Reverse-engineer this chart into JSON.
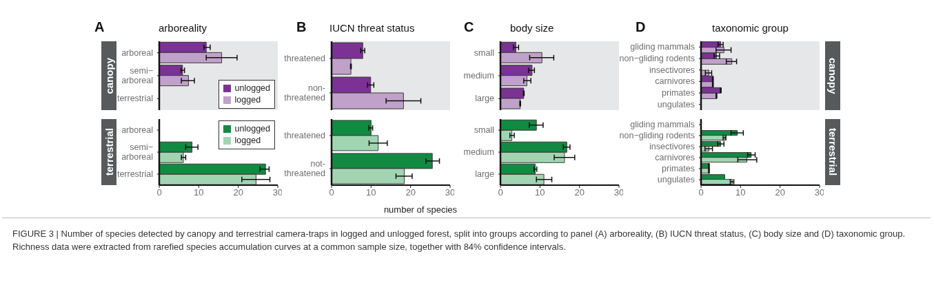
{
  "chart_data": [
    {
      "type": "bar",
      "orientation": "horizontal",
      "title": "arboreality",
      "annotations": [
        "A",
        "canopy"
      ],
      "categories": [
        "arboreal",
        "semi−\narboreal",
        "terrestrial"
      ],
      "xlim": [
        0,
        30
      ],
      "xticks": [
        0,
        10,
        20,
        30
      ],
      "tick_labels": "y",
      "legend": "bottom right",
      "series": [
        {
          "name": "unlogged",
          "color": "#7b3294",
          "values": [
            11.9,
            5.9,
            null
          ],
          "errors": [
            [
              11.3,
              12.9
            ],
            [
              5.5,
              6.4
            ],
            null
          ]
        },
        {
          "name": "logged",
          "color": "#c0a1c9",
          "values": [
            15.8,
            7.4,
            null
          ],
          "errors": [
            [
              11.9,
              19.7
            ],
            [
              5.6,
              8.9
            ],
            null
          ]
        }
      ]
    },
    {
      "type": "bar",
      "orientation": "horizontal",
      "title": "IUCN threat status",
      "annotations": [
        "B"
      ],
      "categories": [
        "threatened",
        "non-\nthreatened"
      ],
      "xlim": [
        0,
        30
      ],
      "xticks": [
        0,
        10,
        20,
        30
      ],
      "tick_labels": "y",
      "series": [
        {
          "color": "#7b3294",
          "values": [
            7.9,
            9.9
          ],
          "errors": [
            [
              7.4,
              8.4
            ],
            [
              9.1,
              10.7
            ]
          ]
        },
        {
          "color": "#c0a1c9",
          "values": [
            4.9,
            18.2
          ],
          "errors": [
            [
              4.8,
              5.0
            ],
            [
              13.8,
              22.6
            ]
          ]
        }
      ]
    },
    {
      "type": "bar",
      "orientation": "horizontal",
      "title": "body size",
      "annotations": [
        "C"
      ],
      "categories": [
        "small",
        "medium",
        "large"
      ],
      "xlim": [
        0,
        30
      ],
      "xticks": [
        0,
        10,
        20,
        30
      ],
      "tick_labels": "y",
      "series": [
        {
          "color": "#7b3294",
          "values": [
            3.9,
            8.0,
            5.9
          ],
          "errors": [
            [
              3.3,
              4.6
            ],
            [
              7.1,
              8.6
            ],
            [
              5.8,
              6.0
            ]
          ]
        },
        {
          "color": "#c0a1c9",
          "values": [
            10.5,
            6.7,
            5.0
          ],
          "errors": [
            [
              7.4,
              13.5
            ],
            [
              5.9,
              7.7
            ],
            [
              4.9,
              5.1
            ]
          ]
        }
      ]
    },
    {
      "type": "bar",
      "orientation": "horizontal",
      "title": "taxonomic group",
      "annotations": [
        "D",
        "canopy"
      ],
      "categories": [
        "gliding mammals",
        "non−gliding rodents",
        "insectivores",
        "carnivores",
        "primates",
        "ungulates"
      ],
      "xlim": [
        0,
        30
      ],
      "xticks": [
        0,
        10,
        20,
        30
      ],
      "tick_labels": "y",
      "series": [
        {
          "color": "#7b3294",
          "values": [
            5.0,
            3.9,
            null,
            3.0,
            5.0,
            null
          ],
          "errors": [
            [
              4.3,
              5.6
            ],
            [
              3.3,
              4.7
            ],
            null,
            [
              2.9,
              3.1
            ],
            [
              4.9,
              5.1
            ],
            null
          ]
        },
        {
          "color": "#c0a1c9",
          "values": [
            5.8,
            7.8,
            2.0,
            3.0,
            3.9,
            null
          ],
          "errors": [
            [
              3.8,
              7.6
            ],
            [
              6.4,
              9.0
            ],
            [
              1.1,
              2.7
            ],
            [
              2.9,
              3.1
            ],
            [
              3.8,
              4.0
            ],
            null
          ]
        }
      ]
    },
    {
      "type": "bar",
      "orientation": "horizontal",
      "annotations": [
        "terrestrial"
      ],
      "categories": [
        "arboreal",
        "semi−\narboreal",
        "terrestrial"
      ],
      "xlim": [
        0,
        30
      ],
      "xticks": [
        0,
        10,
        20,
        30
      ],
      "legend": "top right",
      "series": [
        {
          "name": "unlogged",
          "color": "#118a42",
          "values": [
            null,
            8.3,
            26.9
          ],
          "errors": [
            null,
            [
              6.7,
              9.8
            ],
            [
              25.5,
              27.8
            ]
          ]
        },
        {
          "name": "logged",
          "color": "#a1d5b2",
          "values": [
            null,
            6.1,
            24.5
          ],
          "errors": [
            null,
            [
              5.6,
              6.7
            ],
            [
              20.9,
              28.0
            ]
          ]
        }
      ]
    },
    {
      "type": "bar",
      "orientation": "horizontal",
      "xlabel": "number of species",
      "categories": [
        "threatened",
        "not-\nthreatened"
      ],
      "xlim": [
        0,
        30
      ],
      "xticks": [
        0,
        10,
        20,
        30
      ],
      "series": [
        {
          "color": "#118a42",
          "values": [
            10.0,
            25.5
          ],
          "errors": [
            [
              9.4,
              10.4
            ],
            [
              23.9,
              27.3
            ]
          ]
        },
        {
          "color": "#a1d5b2",
          "values": [
            11.8,
            18.4
          ],
          "errors": [
            [
              9.5,
              14.1
            ],
            [
              16.3,
              20.4
            ]
          ]
        }
      ]
    },
    {
      "type": "bar",
      "orientation": "horizontal",
      "categories": [
        "small",
        "medium",
        "large"
      ],
      "xlim": [
        0,
        30
      ],
      "xticks": [
        0,
        10,
        20,
        30
      ],
      "series": [
        {
          "color": "#118a42",
          "values": [
            9.1,
            16.8,
            8.8
          ],
          "errors": [
            [
              7.3,
              10.8
            ],
            [
              15.9,
              17.6
            ],
            [
              8.5,
              9.2
            ]
          ]
        },
        {
          "color": "#a1d5b2",
          "values": [
            2.9,
            16.2,
            11.0
          ],
          "errors": [
            [
              2.4,
              3.5
            ],
            [
              13.6,
              18.8
            ],
            [
              9.1,
              13.0
            ]
          ]
        }
      ]
    },
    {
      "type": "bar",
      "orientation": "horizontal",
      "annotations": [
        "terrestrial",
        "FIGURE 3 | Number of species detected by canopy and terrestrial camera-traps in logged and unlogged forest, split into groups according to panel (A) arboreality, (B) IUCN threat status, (C) body size and (D) taxonomic group. Richness data were extracted from rarefied species accumulation curves at a common sample size, together with 84% confidence intervals."
      ],
      "categories": [
        "gliding mammals",
        "non−gliding rodents",
        "insectivores",
        "carnivores",
        "primates",
        "ungulates"
      ],
      "xlim": [
        0,
        30
      ],
      "xticks": [
        0,
        10,
        20,
        30
      ],
      "series": [
        {
          "color": "#118a42",
          "values": [
            null,
            9.2,
            5.0,
            12.7,
            2.0,
            6.0
          ],
          "errors": [
            null,
            [
              7.6,
              10.7
            ],
            [
              4.2,
              5.8
            ],
            [
              11.8,
              13.7
            ],
            [
              1.9,
              2.1
            ],
            null
          ]
        },
        {
          "color": "#a1d5b2",
          "values": [
            null,
            6.1,
            2.0,
            11.6,
            2.0,
            7.9
          ],
          "errors": [
            null,
            [
              5.6,
              6.3
            ],
            [
              1.0,
              2.9
            ],
            [
              9.3,
              14.1
            ],
            [
              1.9,
              2.1
            ],
            [
              7.4,
              8.3
            ]
          ]
        }
      ]
    }
  ]
}
